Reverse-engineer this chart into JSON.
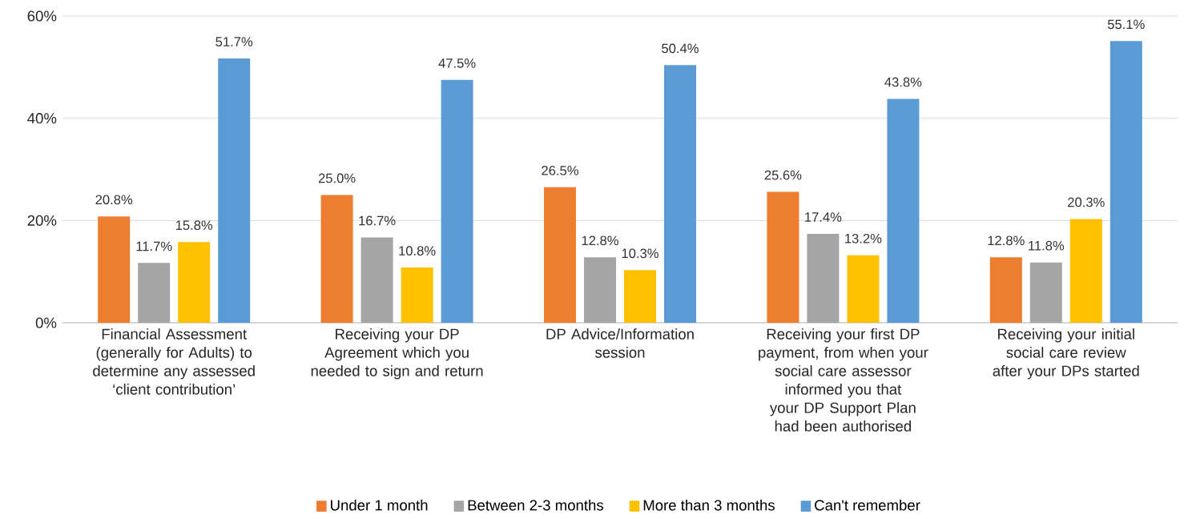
{
  "chart_data": {
    "type": "bar",
    "categories": [
      "Financial Assessment (generally for Adults) to determine any assessed ‘client contribution’",
      "Receiving your DP Agreement which you needed to sign and return",
      "DP Advice/Information session",
      "Receiving your first DP payment, from when your social care assessor informed you that your DP Support Plan had been authorised",
      "Receiving your initial social care review after your DPs started"
    ],
    "series": [
      {
        "name": "Under 1 month",
        "color": "#ed7d31",
        "values": [
          20.8,
          25.0,
          26.5,
          25.6,
          12.8
        ],
        "value_labels": [
          "20.8%",
          "25.0%",
          "26.5%",
          "25.6%",
          "12.8%"
        ]
      },
      {
        "name": "Between 2-3 months",
        "color": "#a5a5a5",
        "values": [
          11.7,
          16.7,
          12.8,
          17.4,
          11.8
        ],
        "value_labels": [
          "11.7%",
          "16.7%",
          "12.8%",
          "17.4%",
          "11.8%"
        ]
      },
      {
        "name": "More than 3 months",
        "color": "#ffc000",
        "values": [
          15.8,
          10.8,
          10.3,
          13.2,
          20.3
        ],
        "value_labels": [
          "15.8%",
          "10.8%",
          "10.3%",
          "13.2%",
          "20.3%"
        ]
      },
      {
        "name": "Can't remember",
        "color": "#5b9bd5",
        "values": [
          51.7,
          47.5,
          50.4,
          43.8,
          55.1
        ],
        "value_labels": [
          "51.7%",
          "47.5%",
          "50.4%",
          "43.8%",
          "55.1%"
        ]
      }
    ],
    "ylim": [
      0,
      60
    ],
    "yticks": [
      {
        "value": 0,
        "label": "0%"
      },
      {
        "value": 20,
        "label": "20%"
      },
      {
        "value": 40,
        "label": "40%"
      },
      {
        "value": 60,
        "label": "60%"
      }
    ],
    "grid": "y",
    "legend": "bottom"
  }
}
